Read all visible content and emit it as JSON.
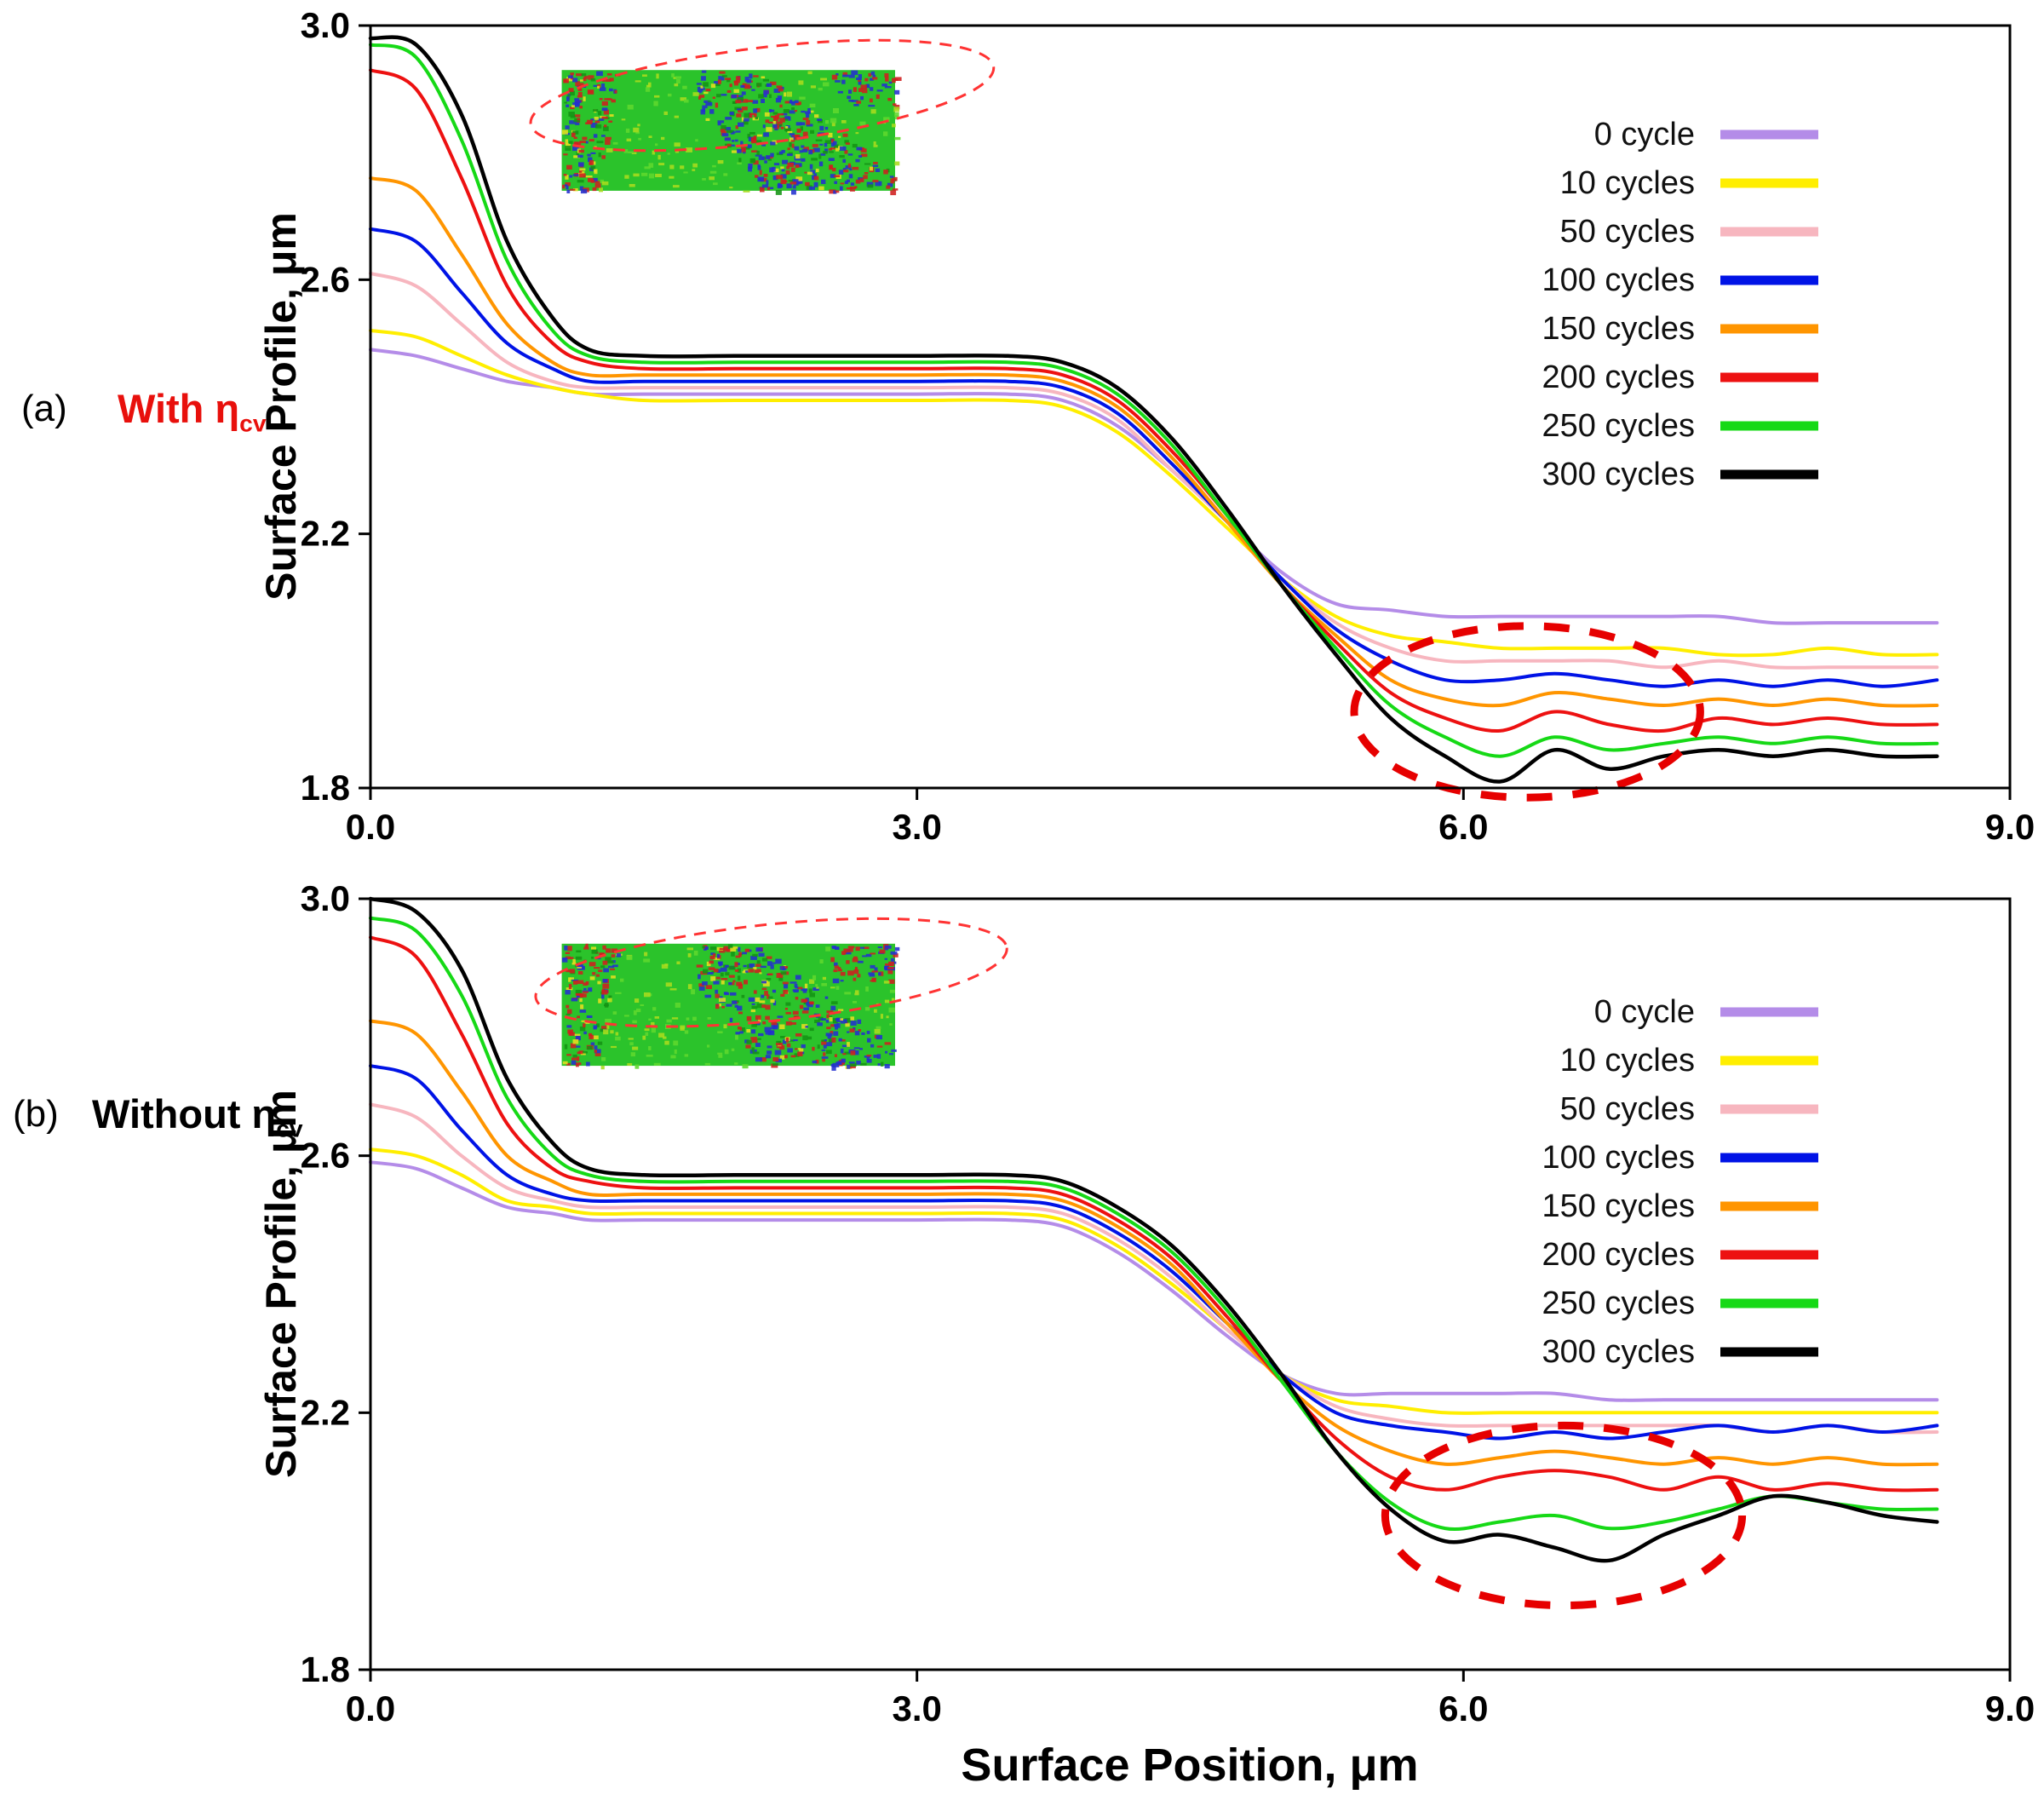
{
  "figure": {
    "xlabel": "Surface Position, μm",
    "ylabel": "Surface Profile, μm"
  },
  "panels": [
    {
      "tag": "(a)",
      "condition": "With η",
      "condition_sub": "cv",
      "condition_color": "#e8100c"
    },
    {
      "tag": "(b)",
      "condition": "Without η",
      "condition_sub": "cv",
      "condition_color": "#000000"
    }
  ],
  "chart_data": [
    {
      "type": "line",
      "title": "",
      "xlabel": "Surface Position, μm",
      "ylabel": "Surface Profile, μm",
      "xlim": [
        0.0,
        9.0
      ],
      "ylim": [
        1.8,
        3.0
      ],
      "xticks": [
        0.0,
        3.0,
        6.0,
        9.0
      ],
      "xtick_labels": [
        "0.0",
        "3.0",
        "6.0",
        "9.0"
      ],
      "yticks": [
        1.8,
        2.2,
        2.6,
        3.0
      ],
      "ytick_labels": [
        "1.8",
        "2.2",
        "2.6",
        "3.0"
      ],
      "grid": false,
      "legend_position": "upper right",
      "x": [
        0.0,
        0.25,
        0.5,
        0.75,
        1.0,
        1.2,
        1.5,
        2.0,
        2.5,
        3.0,
        3.5,
        3.8,
        4.1,
        4.4,
        4.7,
        5.0,
        5.3,
        5.6,
        5.9,
        6.2,
        6.5,
        6.8,
        7.1,
        7.4,
        7.7,
        8.0,
        8.3,
        8.6
      ],
      "series": [
        {
          "name": "0 cycle",
          "color": "#b48ce8",
          "values": [
            2.49,
            2.48,
            2.46,
            2.44,
            2.43,
            2.42,
            2.42,
            2.42,
            2.42,
            2.42,
            2.42,
            2.41,
            2.37,
            2.3,
            2.22,
            2.14,
            2.09,
            2.08,
            2.07,
            2.07,
            2.07,
            2.07,
            2.07,
            2.07,
            2.06,
            2.06,
            2.06,
            2.06
          ]
        },
        {
          "name": "10 cycles",
          "color": "#ffee00",
          "values": [
            2.52,
            2.51,
            2.48,
            2.45,
            2.43,
            2.42,
            2.41,
            2.41,
            2.41,
            2.41,
            2.41,
            2.4,
            2.36,
            2.29,
            2.21,
            2.13,
            2.07,
            2.04,
            2.03,
            2.02,
            2.02,
            2.02,
            2.02,
            2.01,
            2.01,
            2.02,
            2.01,
            2.01
          ]
        },
        {
          "name": "50 cycles",
          "color": "#f7b6bf",
          "values": [
            2.61,
            2.59,
            2.53,
            2.47,
            2.44,
            2.43,
            2.43,
            2.43,
            2.43,
            2.43,
            2.43,
            2.42,
            2.38,
            2.3,
            2.22,
            2.13,
            2.06,
            2.02,
            2.0,
            2.0,
            2.0,
            2.0,
            1.99,
            2.0,
            1.99,
            1.99,
            1.99,
            1.99
          ]
        },
        {
          "name": "100 cycles",
          "color": "#0013e6",
          "values": [
            2.68,
            2.66,
            2.58,
            2.5,
            2.46,
            2.44,
            2.44,
            2.44,
            2.44,
            2.44,
            2.44,
            2.43,
            2.39,
            2.31,
            2.22,
            2.13,
            2.05,
            2.0,
            1.97,
            1.97,
            1.98,
            1.97,
            1.96,
            1.97,
            1.96,
            1.97,
            1.96,
            1.97
          ]
        },
        {
          "name": "150 cycles",
          "color": "#ff9500",
          "values": [
            2.76,
            2.74,
            2.64,
            2.53,
            2.47,
            2.45,
            2.45,
            2.45,
            2.45,
            2.45,
            2.45,
            2.44,
            2.4,
            2.32,
            2.22,
            2.12,
            2.04,
            1.97,
            1.94,
            1.93,
            1.95,
            1.94,
            1.93,
            1.94,
            1.93,
            1.94,
            1.93,
            1.93
          ]
        },
        {
          "name": "200 cycles",
          "color": "#ed1111",
          "values": [
            2.93,
            2.9,
            2.76,
            2.59,
            2.5,
            2.47,
            2.46,
            2.46,
            2.46,
            2.46,
            2.46,
            2.45,
            2.41,
            2.33,
            2.23,
            2.12,
            2.03,
            1.95,
            1.91,
            1.89,
            1.92,
            1.9,
            1.89,
            1.91,
            1.9,
            1.91,
            1.9,
            1.9
          ]
        },
        {
          "name": "250 cycles",
          "color": "#16d916",
          "values": [
            2.97,
            2.95,
            2.82,
            2.63,
            2.52,
            2.48,
            2.47,
            2.47,
            2.47,
            2.47,
            2.47,
            2.46,
            2.42,
            2.34,
            2.23,
            2.12,
            2.02,
            1.93,
            1.88,
            1.85,
            1.88,
            1.86,
            1.87,
            1.88,
            1.87,
            1.88,
            1.87,
            1.87
          ]
        },
        {
          "name": "300 cycles",
          "color": "#000000",
          "values": [
            2.98,
            2.97,
            2.86,
            2.66,
            2.54,
            2.49,
            2.48,
            2.48,
            2.48,
            2.48,
            2.48,
            2.47,
            2.43,
            2.35,
            2.24,
            2.12,
            2.01,
            1.91,
            1.85,
            1.81,
            1.86,
            1.83,
            1.85,
            1.86,
            1.85,
            1.86,
            1.85,
            1.85
          ]
        }
      ],
      "annotations": {
        "inset": {
          "x0": 1.05,
          "y0": 2.74,
          "x1": 2.88,
          "y1": 2.93
        },
        "inset_ellipse": {
          "cx": 2.15,
          "cy": 2.89,
          "rx": 1.28,
          "ry": 0.075,
          "rotate": -7,
          "stroke": "#ff3333",
          "width": 3,
          "dash": "14 10"
        },
        "highlight_ellipse": {
          "cx": 6.35,
          "cy": 1.92,
          "rx": 0.95,
          "ry": 0.135,
          "rotate": 0,
          "stroke": "#e60000",
          "width": 9,
          "dash": "30 24"
        }
      }
    },
    {
      "type": "line",
      "title": "",
      "xlabel": "Surface Position, μm",
      "ylabel": "Surface Profile, μm",
      "xlim": [
        0.0,
        9.0
      ],
      "ylim": [
        1.8,
        3.0
      ],
      "xticks": [
        0.0,
        3.0,
        6.0,
        9.0
      ],
      "xtick_labels": [
        "0.0",
        "3.0",
        "6.0",
        "9.0"
      ],
      "yticks": [
        1.8,
        2.2,
        2.6,
        3.0
      ],
      "ytick_labels": [
        "1.8",
        "2.2",
        "2.6",
        "3.0"
      ],
      "grid": false,
      "legend_position": "upper right",
      "x": [
        0.0,
        0.25,
        0.5,
        0.75,
        1.0,
        1.2,
        1.5,
        2.0,
        2.5,
        3.0,
        3.5,
        3.8,
        4.1,
        4.4,
        4.7,
        5.0,
        5.3,
        5.6,
        5.9,
        6.2,
        6.5,
        6.8,
        7.1,
        7.4,
        7.7,
        8.0,
        8.3,
        8.6
      ],
      "series": [
        {
          "name": "0 cycle",
          "color": "#b48ce8",
          "values": [
            2.59,
            2.58,
            2.55,
            2.52,
            2.51,
            2.5,
            2.5,
            2.5,
            2.5,
            2.5,
            2.5,
            2.49,
            2.45,
            2.39,
            2.32,
            2.26,
            2.23,
            2.23,
            2.23,
            2.23,
            2.23,
            2.22,
            2.22,
            2.22,
            2.22,
            2.22,
            2.22,
            2.22
          ]
        },
        {
          "name": "10 cycles",
          "color": "#ffee00",
          "values": [
            2.61,
            2.6,
            2.57,
            2.53,
            2.52,
            2.51,
            2.51,
            2.51,
            2.51,
            2.51,
            2.51,
            2.5,
            2.46,
            2.4,
            2.33,
            2.26,
            2.22,
            2.21,
            2.2,
            2.2,
            2.2,
            2.2,
            2.2,
            2.2,
            2.2,
            2.2,
            2.2,
            2.2
          ]
        },
        {
          "name": "50 cycles",
          "color": "#f7b6bf",
          "values": [
            2.68,
            2.66,
            2.6,
            2.55,
            2.53,
            2.52,
            2.52,
            2.52,
            2.52,
            2.52,
            2.52,
            2.51,
            2.47,
            2.41,
            2.33,
            2.26,
            2.21,
            2.19,
            2.18,
            2.18,
            2.18,
            2.18,
            2.18,
            2.18,
            2.17,
            2.18,
            2.17,
            2.17
          ]
        },
        {
          "name": "100 cycles",
          "color": "#0013e6",
          "values": [
            2.74,
            2.72,
            2.64,
            2.57,
            2.54,
            2.53,
            2.53,
            2.53,
            2.53,
            2.53,
            2.53,
            2.52,
            2.48,
            2.42,
            2.34,
            2.26,
            2.2,
            2.18,
            2.17,
            2.16,
            2.17,
            2.16,
            2.17,
            2.18,
            2.17,
            2.18,
            2.17,
            2.18
          ]
        },
        {
          "name": "150 cycles",
          "color": "#ff9500",
          "values": [
            2.81,
            2.79,
            2.7,
            2.6,
            2.56,
            2.54,
            2.54,
            2.54,
            2.54,
            2.54,
            2.54,
            2.53,
            2.49,
            2.43,
            2.34,
            2.25,
            2.18,
            2.14,
            2.12,
            2.13,
            2.14,
            2.13,
            2.12,
            2.13,
            2.12,
            2.13,
            2.12,
            2.12
          ]
        },
        {
          "name": "200 cycles",
          "color": "#ed1111",
          "values": [
            2.94,
            2.91,
            2.79,
            2.65,
            2.58,
            2.56,
            2.55,
            2.55,
            2.55,
            2.55,
            2.55,
            2.54,
            2.5,
            2.44,
            2.35,
            2.25,
            2.16,
            2.1,
            2.08,
            2.1,
            2.11,
            2.1,
            2.08,
            2.1,
            2.08,
            2.09,
            2.08,
            2.08
          ]
        },
        {
          "name": "250 cycles",
          "color": "#16d916",
          "values": [
            2.97,
            2.95,
            2.85,
            2.69,
            2.6,
            2.57,
            2.56,
            2.56,
            2.56,
            2.56,
            2.56,
            2.55,
            2.51,
            2.45,
            2.36,
            2.25,
            2.14,
            2.06,
            2.02,
            2.03,
            2.04,
            2.02,
            2.03,
            2.05,
            2.07,
            2.06,
            2.05,
            2.05
          ]
        },
        {
          "name": "300 cycles",
          "color": "#000000",
          "values": [
            3.0,
            2.98,
            2.89,
            2.72,
            2.62,
            2.58,
            2.57,
            2.57,
            2.57,
            2.57,
            2.57,
            2.56,
            2.52,
            2.46,
            2.37,
            2.26,
            2.14,
            2.05,
            2.0,
            2.01,
            1.99,
            1.97,
            2.01,
            2.04,
            2.07,
            2.06,
            2.04,
            2.03
          ]
        }
      ],
      "annotations": {
        "inset": {
          "x0": 1.05,
          "y0": 2.74,
          "x1": 2.88,
          "y1": 2.93
        },
        "inset_ellipse": {
          "cx": 2.2,
          "cy": 2.885,
          "rx": 1.3,
          "ry": 0.075,
          "rotate": -6,
          "stroke": "#ff3333",
          "width": 3,
          "dash": "14 10"
        },
        "highlight_ellipse": {
          "cx": 6.55,
          "cy": 2.04,
          "rx": 0.98,
          "ry": 0.14,
          "rotate": 0,
          "stroke": "#e60000",
          "width": 9,
          "dash": "30 24"
        }
      }
    }
  ]
}
